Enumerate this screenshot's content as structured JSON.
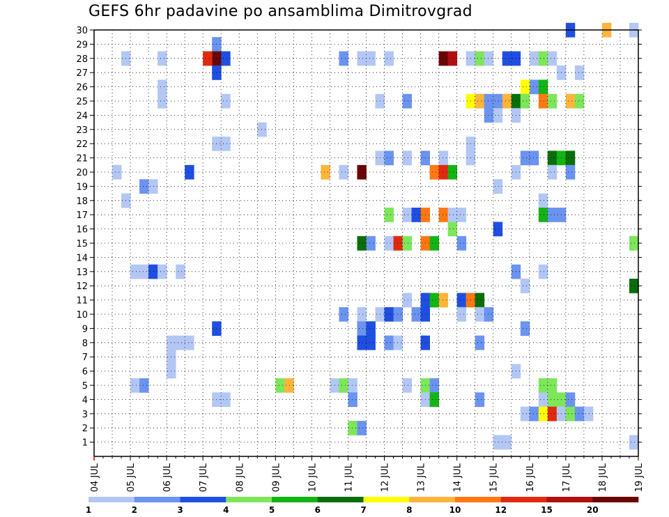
{
  "title": "GEFS 6hr padavine po ansamblima Dimitrovgrad",
  "chart_data": {
    "type": "heatmap",
    "title": "GEFS 6hr padavine po ansamblima Dimitrovgrad",
    "xlabel": "",
    "ylabel": "",
    "x_ticks": [
      "04 JUL",
      "05 JUL",
      "06 JUL",
      "07 JUL",
      "08 JUL",
      "09 JUL",
      "10 JUL",
      "11 JUL",
      "12 JUL",
      "13 JUL",
      "14 JUL",
      "15 JUL",
      "16 JUL",
      "17 JUL",
      "18 JUL",
      "19 JUL"
    ],
    "x_range": [
      0,
      60
    ],
    "x_units": "6-hour steps from 04 JUL 00Z",
    "y_range": [
      0,
      30
    ],
    "y_ticks": [
      1,
      2,
      3,
      4,
      5,
      6,
      7,
      8,
      9,
      10,
      11,
      12,
      13,
      14,
      15,
      16,
      17,
      18,
      19,
      20,
      21,
      22,
      23,
      24,
      25,
      26,
      27,
      28,
      29,
      30
    ],
    "grid": true,
    "colorbar": {
      "labels": [
        "1",
        "2",
        "3",
        "4",
        "5",
        "6",
        "7",
        "8",
        "10",
        "12",
        "15",
        "20"
      ],
      "colors": [
        "#b3c7f5",
        "#6b93f0",
        "#1f4fe0",
        "#7de65a",
        "#14b414",
        "#0a6e0a",
        "#ffff00",
        "#ffb43c",
        "#ff7814",
        "#e02a10",
        "#b01010",
        "#6a0606"
      ]
    },
    "cells": [
      [
        59,
        30,
        "#b3c7f5"
      ],
      [
        56,
        30,
        "#ffb43c"
      ],
      [
        52,
        30,
        "#1f4fe0"
      ],
      [
        13,
        29,
        "#6b93f0"
      ],
      [
        3,
        28,
        "#b3c7f5"
      ],
      [
        7,
        28,
        "#b3c7f5"
      ],
      [
        13,
        28,
        "#6a0606"
      ],
      [
        12,
        28,
        "#e02a10"
      ],
      [
        14,
        28,
        "#1f4fe0"
      ],
      [
        27,
        28,
        "#6b93f0"
      ],
      [
        30,
        28,
        "#b3c7f5"
      ],
      [
        29,
        28,
        "#b3c7f5"
      ],
      [
        32,
        28,
        "#b3c7f5"
      ],
      [
        38,
        28,
        "#6a0606"
      ],
      [
        39,
        28,
        "#b01010"
      ],
      [
        41,
        28,
        "#b3c7f5"
      ],
      [
        42,
        28,
        "#7de65a"
      ],
      [
        43,
        28,
        "#b3c7f5"
      ],
      [
        45,
        28,
        "#1f4fe0"
      ],
      [
        46,
        28,
        "#1f4fe0"
      ],
      [
        48,
        28,
        "#b3c7f5"
      ],
      [
        49,
        28,
        "#7de65a"
      ],
      [
        50,
        28,
        "#b3c7f5"
      ],
      [
        13,
        27,
        "#1f4fe0"
      ],
      [
        51,
        27,
        "#b3c7f5"
      ],
      [
        53,
        27,
        "#b3c7f5"
      ],
      [
        7,
        26,
        "#b3c7f5"
      ],
      [
        48,
        26,
        "#6b93f0"
      ],
      [
        49,
        26,
        "#14b414"
      ],
      [
        47,
        26,
        "#ffff00"
      ],
      [
        7,
        25,
        "#b3c7f5"
      ],
      [
        14,
        25,
        "#b3c7f5"
      ],
      [
        31,
        25,
        "#b3c7f5"
      ],
      [
        34,
        25,
        "#6b93f0"
      ],
      [
        41,
        25,
        "#ffff00"
      ],
      [
        42,
        25,
        "#ffb43c"
      ],
      [
        43,
        25,
        "#6b93f0"
      ],
      [
        44,
        25,
        "#6b93f0"
      ],
      [
        45,
        25,
        "#ffb43c"
      ],
      [
        46,
        25,
        "#0a6e0a"
      ],
      [
        47,
        25,
        "#7de65a"
      ],
      [
        49,
        25,
        "#ff7814"
      ],
      [
        50,
        25,
        "#7de65a"
      ],
      [
        52,
        25,
        "#ffb43c"
      ],
      [
        53,
        25,
        "#7de65a"
      ],
      [
        43,
        24,
        "#6b93f0"
      ],
      [
        44,
        24,
        "#b3c7f5"
      ],
      [
        46,
        24,
        "#b3c7f5"
      ],
      [
        18,
        23,
        "#b3c7f5"
      ],
      [
        13,
        22,
        "#b3c7f5"
      ],
      [
        14,
        22,
        "#b3c7f5"
      ],
      [
        41,
        22,
        "#b3c7f5"
      ],
      [
        31,
        21,
        "#b3c7f5"
      ],
      [
        32,
        21,
        "#6b93f0"
      ],
      [
        34,
        21,
        "#b3c7f5"
      ],
      [
        36,
        21,
        "#6b93f0"
      ],
      [
        38,
        21,
        "#b3c7f5"
      ],
      [
        41,
        21,
        "#b3c7f5"
      ],
      [
        47,
        21,
        "#6b93f0"
      ],
      [
        48,
        21,
        "#6b93f0"
      ],
      [
        50,
        21,
        "#0a6e0a"
      ],
      [
        51,
        21,
        "#14b414"
      ],
      [
        52,
        21,
        "#0a6e0a"
      ],
      [
        2,
        20,
        "#b3c7f5"
      ],
      [
        10,
        20,
        "#1f4fe0"
      ],
      [
        25,
        20,
        "#ffb43c"
      ],
      [
        27,
        20,
        "#b3c7f5"
      ],
      [
        29,
        20,
        "#6a0606"
      ],
      [
        37,
        20,
        "#ff7814"
      ],
      [
        38,
        20,
        "#e02a10"
      ],
      [
        39,
        20,
        "#14b414"
      ],
      [
        46,
        20,
        "#b3c7f5"
      ],
      [
        50,
        20,
        "#b3c7f5"
      ],
      [
        52,
        20,
        "#6b93f0"
      ],
      [
        5,
        19,
        "#6b93f0"
      ],
      [
        6,
        19,
        "#b3c7f5"
      ],
      [
        44,
        19,
        "#b3c7f5"
      ],
      [
        3,
        18,
        "#b3c7f5"
      ],
      [
        49,
        18,
        "#b3c7f5"
      ],
      [
        32,
        17,
        "#7de65a"
      ],
      [
        34,
        17,
        "#b3c7f5"
      ],
      [
        35,
        17,
        "#1f4fe0"
      ],
      [
        36,
        17,
        "#ff7814"
      ],
      [
        38,
        17,
        "#ff7814"
      ],
      [
        39,
        17,
        "#b3c7f5"
      ],
      [
        40,
        17,
        "#b3c7f5"
      ],
      [
        49,
        17,
        "#14b414"
      ],
      [
        50,
        17,
        "#6b93f0"
      ],
      [
        51,
        17,
        "#6b93f0"
      ],
      [
        39,
        16,
        "#7de65a"
      ],
      [
        44,
        16,
        "#1f4fe0"
      ],
      [
        29,
        15,
        "#0a6e0a"
      ],
      [
        30,
        15,
        "#6b93f0"
      ],
      [
        32,
        15,
        "#b3c7f5"
      ],
      [
        33,
        15,
        "#e02a10"
      ],
      [
        34,
        15,
        "#7de65a"
      ],
      [
        36,
        15,
        "#ff7814"
      ],
      [
        37,
        15,
        "#14b414"
      ],
      [
        40,
        15,
        "#6b93f0"
      ],
      [
        59,
        15,
        "#7de65a"
      ],
      [
        4,
        13,
        "#b3c7f5"
      ],
      [
        5,
        13,
        "#b3c7f5"
      ],
      [
        6,
        13,
        "#1f4fe0"
      ],
      [
        7,
        13,
        "#b3c7f5"
      ],
      [
        9,
        13,
        "#b3c7f5"
      ],
      [
        46,
        13,
        "#6b93f0"
      ],
      [
        49,
        13,
        "#b3c7f5"
      ],
      [
        47,
        12,
        "#b3c7f5"
      ],
      [
        59,
        12,
        "#0a6e0a"
      ],
      [
        34,
        11,
        "#b3c7f5"
      ],
      [
        36,
        11,
        "#1f4fe0"
      ],
      [
        37,
        11,
        "#14b414"
      ],
      [
        38,
        11,
        "#ffb43c"
      ],
      [
        40,
        11,
        "#1f4fe0"
      ],
      [
        41,
        11,
        "#ff7814"
      ],
      [
        42,
        11,
        "#0a6e0a"
      ],
      [
        27,
        10,
        "#6b93f0"
      ],
      [
        29,
        10,
        "#b3c7f5"
      ],
      [
        31,
        10,
        "#b3c7f5"
      ],
      [
        32,
        10,
        "#1f4fe0"
      ],
      [
        33,
        10,
        "#6b93f0"
      ],
      [
        35,
        10,
        "#6b93f0"
      ],
      [
        36,
        10,
        "#1f4fe0"
      ],
      [
        40,
        10,
        "#b3c7f5"
      ],
      [
        42,
        10,
        "#b3c7f5"
      ],
      [
        43,
        10,
        "#6b93f0"
      ],
      [
        13,
        9,
        "#1f4fe0"
      ],
      [
        29,
        9,
        "#6b93f0"
      ],
      [
        30,
        9,
        "#1f4fe0"
      ],
      [
        47,
        9,
        "#6b93f0"
      ],
      [
        8,
        8,
        "#b3c7f5"
      ],
      [
        9,
        8,
        "#b3c7f5"
      ],
      [
        10,
        8,
        "#b3c7f5"
      ],
      [
        8,
        7,
        "#b3c7f5"
      ],
      [
        29,
        8,
        "#1f4fe0"
      ],
      [
        30,
        8,
        "#1f4fe0"
      ],
      [
        32,
        8,
        "#6b93f0"
      ],
      [
        33,
        8,
        "#b3c7f5"
      ],
      [
        36,
        8,
        "#1f4fe0"
      ],
      [
        42,
        8,
        "#6b93f0"
      ],
      [
        8,
        6,
        "#b3c7f5"
      ],
      [
        46,
        6,
        "#b3c7f5"
      ],
      [
        4,
        5,
        "#b3c7f5"
      ],
      [
        5,
        5,
        "#6b93f0"
      ],
      [
        20,
        5,
        "#7de65a"
      ],
      [
        21,
        5,
        "#ffb43c"
      ],
      [
        26,
        5,
        "#b3c7f5"
      ],
      [
        27,
        5,
        "#7de65a"
      ],
      [
        28,
        5,
        "#b3c7f5"
      ],
      [
        34,
        5,
        "#b3c7f5"
      ],
      [
        36,
        5,
        "#7de65a"
      ],
      [
        37,
        5,
        "#6b93f0"
      ],
      [
        49,
        5,
        "#7de65a"
      ],
      [
        50,
        5,
        "#7de65a"
      ],
      [
        13,
        4,
        "#b3c7f5"
      ],
      [
        14,
        4,
        "#b3c7f5"
      ],
      [
        28,
        4,
        "#6b93f0"
      ],
      [
        36,
        4,
        "#b3c7f5"
      ],
      [
        37,
        4,
        "#14b414"
      ],
      [
        42,
        4,
        "#6b93f0"
      ],
      [
        49,
        4,
        "#b3c7f5"
      ],
      [
        50,
        4,
        "#7de65a"
      ],
      [
        51,
        4,
        "#7de65a"
      ],
      [
        52,
        4,
        "#6b93f0"
      ],
      [
        47,
        3,
        "#b3c7f5"
      ],
      [
        48,
        3,
        "#6b93f0"
      ],
      [
        49,
        3,
        "#ffff00"
      ],
      [
        50,
        3,
        "#e02a10"
      ],
      [
        51,
        3,
        "#b3c7f5"
      ],
      [
        52,
        3,
        "#7de65a"
      ],
      [
        53,
        3,
        "#6b93f0"
      ],
      [
        54,
        3,
        "#b3c7f5"
      ],
      [
        28,
        2,
        "#7de65a"
      ],
      [
        29,
        2,
        "#6b93f0"
      ],
      [
        44,
        1,
        "#b3c7f5"
      ],
      [
        45,
        1,
        "#b3c7f5"
      ],
      [
        59,
        1,
        "#b3c7f5"
      ]
    ]
  }
}
